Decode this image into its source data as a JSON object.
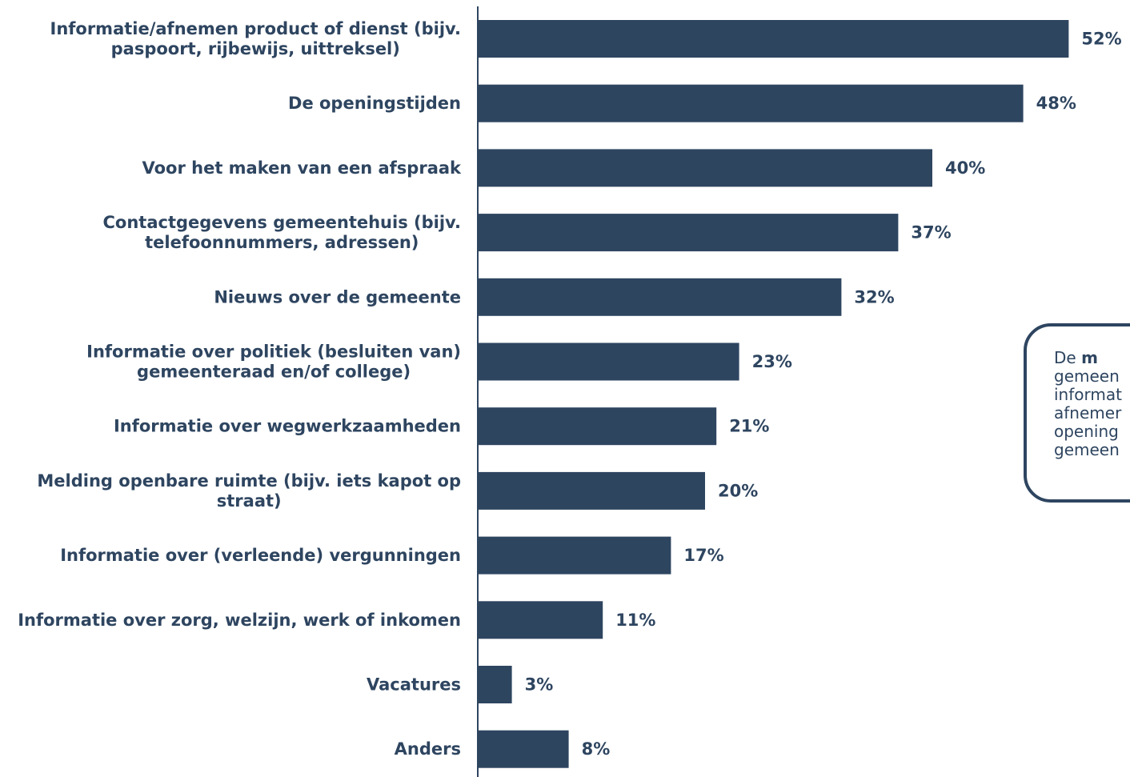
{
  "chart_data": {
    "type": "bar",
    "orientation": "horizontal",
    "categories": [
      [
        "Informatie/afnemen product of dienst (bijv.",
        "paspoort, rijbewijs, uittreksel)"
      ],
      [
        "De openingstijden"
      ],
      [
        "Voor het maken van een afspraak"
      ],
      [
        "Contactgegevens gemeentehuis (bijv.",
        "telefoonnummers, adressen)"
      ],
      [
        "Nieuws over de gemeente"
      ],
      [
        "Informatie over politiek (besluiten van)",
        "gemeenteraad en/of college)"
      ],
      [
        "Informatie over wegwerkzaamheden"
      ],
      [
        "Melding openbare ruimte (bijv. iets kapot op",
        "straat)"
      ],
      [
        "Informatie over (verleende) vergunningen"
      ],
      [
        "Informatie over zorg, welzijn, werk of inkomen"
      ],
      [
        "Vacatures"
      ],
      [
        "Anders"
      ]
    ],
    "values": [
      52,
      48,
      40,
      37,
      32,
      23,
      21,
      20,
      17,
      11,
      3,
      8
    ],
    "value_labels": [
      "52%",
      "48%",
      "40%",
      "37%",
      "32%",
      "23%",
      "21%",
      "20%",
      "17%",
      "11%",
      "3%",
      "8%"
    ],
    "unit": "%",
    "bar_color": "#2e4560",
    "text_color": "#2e4560",
    "grid": false,
    "legend": "none"
  },
  "callout": {
    "lines": [
      [
        {
          "t": "De "
        },
        {
          "t": "m",
          "b": true
        }
      ],
      [
        {
          "t": "gemeen"
        }
      ],
      [
        {
          "t": "informat"
        }
      ],
      [
        {
          "t": "afnemer"
        }
      ],
      [
        {
          "t": "opening"
        }
      ],
      [
        {
          "t": "gemeen"
        }
      ]
    ]
  }
}
